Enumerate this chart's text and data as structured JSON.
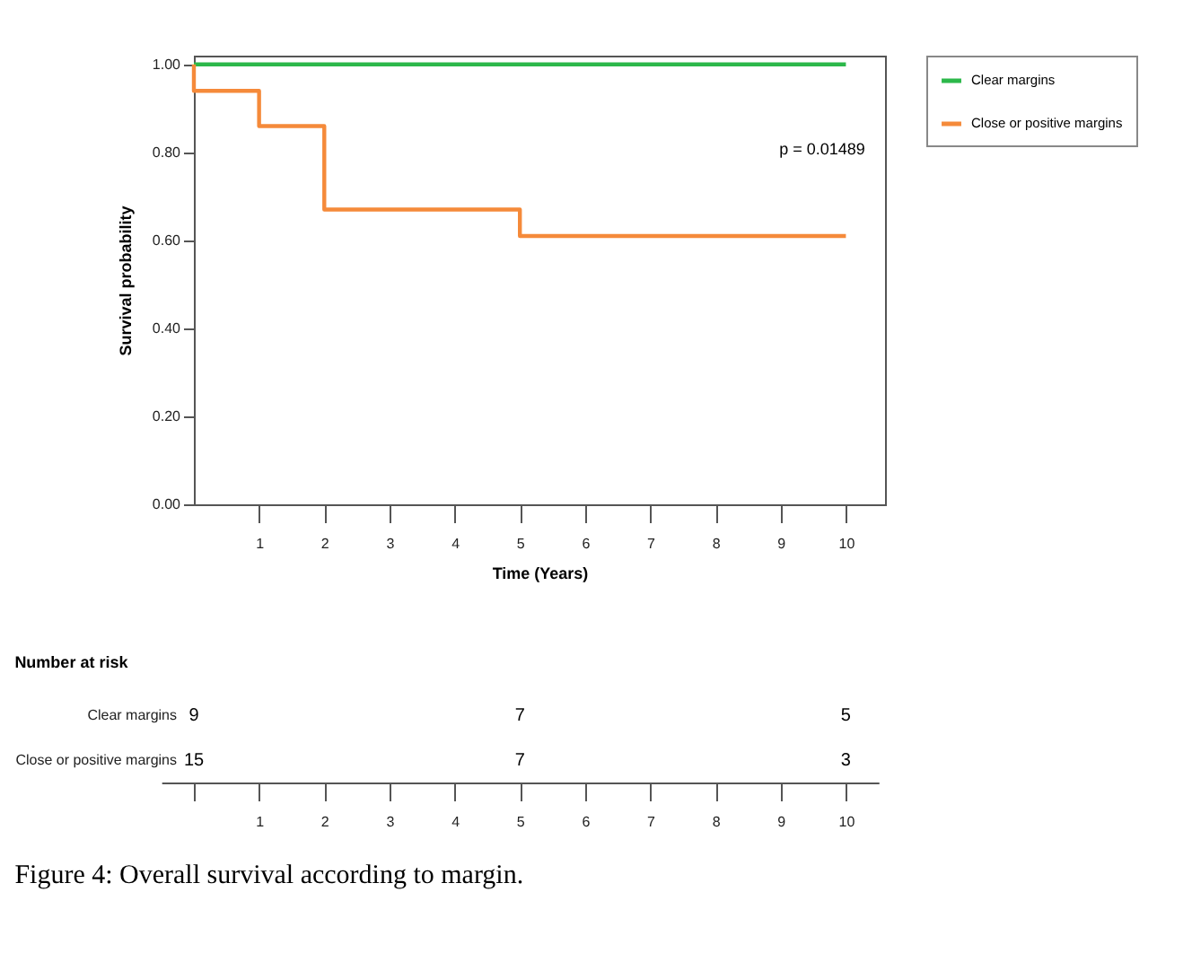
{
  "chart_data": [
    {
      "type": "step",
      "xlabel": "Time (Years)",
      "ylabel": "Survival probability",
      "series": [
        {
          "name": "Clear margins",
          "color": "#2cb84a",
          "x": [
            0,
            10
          ],
          "values": [
            1.0,
            1.0
          ]
        },
        {
          "name": "Close or positive margins",
          "color": "#f58a3a",
          "x": [
            0,
            0,
            1,
            2,
            5,
            10
          ],
          "values": [
            1.0,
            0.94,
            0.86,
            0.67,
            0.61,
            0.61
          ]
        }
      ],
      "xlim": [
        0,
        10.6
      ],
      "xticks": [
        1,
        2,
        3,
        4,
        5,
        6,
        7,
        8,
        9,
        10
      ],
      "ylim": [
        0,
        1.02
      ],
      "yticks": [
        {
          "value": 0,
          "label": "0.00"
        },
        {
          "value": 0.2,
          "label": "0.20"
        },
        {
          "value": 0.4,
          "label": "0.40"
        },
        {
          "value": 0.6,
          "label": "0.60"
        },
        {
          "value": 0.8,
          "label": "0.80"
        },
        {
          "value": 1,
          "label": "1.00"
        }
      ],
      "annotations": [
        "p = 0.01489"
      ],
      "legend": "right",
      "grid": false
    },
    {
      "type": "heatmap",
      "title": "Number at risk",
      "categories": [
        null,
        "1",
        "2",
        "3",
        "4",
        "5",
        "6",
        "7",
        "8",
        "9",
        "10"
      ],
      "y_categories": [
        "Clear margins",
        "Close or positive margins"
      ],
      "cells": [
        [
          9,
          null,
          null,
          null,
          null,
          7,
          null,
          null,
          null,
          null,
          5
        ],
        [
          15,
          null,
          null,
          null,
          null,
          7,
          null,
          null,
          null,
          null,
          3
        ]
      ],
      "data_labels": true,
      "annotations": [
        "Figure 4: Overall survival according to margin."
      ]
    }
  ]
}
